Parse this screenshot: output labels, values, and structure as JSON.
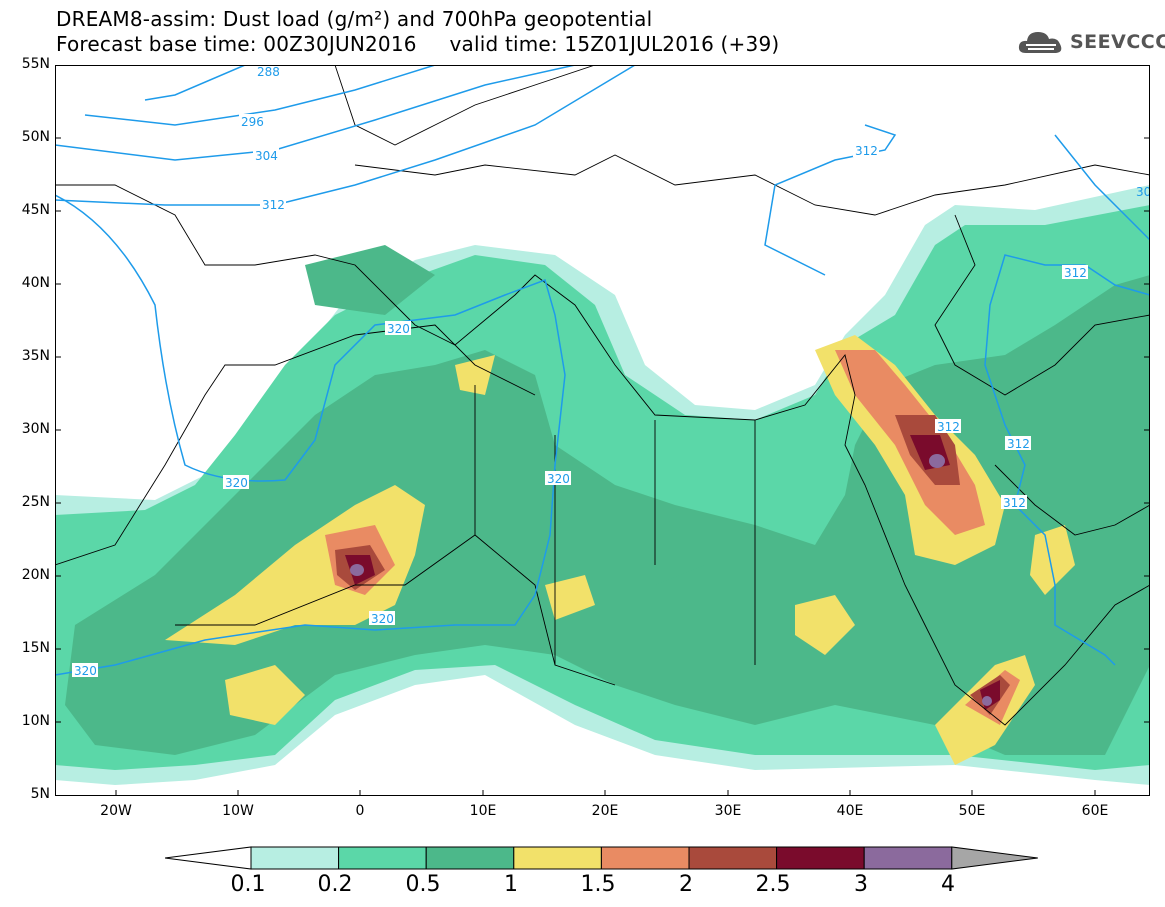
{
  "title": {
    "line1": "DREAM8-assim: Dust load (g/m²) and 700hPa geopotential",
    "line2": "Forecast base time: 00Z30JUN2016     valid time: 15Z01JUL2016 (+39)"
  },
  "logo": {
    "text": "SEEVCCC",
    "icon": "cloud-icon"
  },
  "map": {
    "lat_labels": [
      "55N",
      "50N",
      "45N",
      "40N",
      "35N",
      "30N",
      "25N",
      "20N",
      "15N",
      "10N",
      "5N"
    ],
    "lon_labels": [
      "20W",
      "10W",
      "0",
      "10E",
      "20E",
      "30E",
      "40E",
      "50E",
      "60E"
    ],
    "contour_labels": [
      "288",
      "296",
      "304",
      "312",
      "312",
      "320",
      "320",
      "320",
      "320",
      "320",
      "312",
      "312",
      "312",
      "312",
      "30"
    ],
    "contour_color": "#1e9bea"
  },
  "colorbar": {
    "labels": [
      "0.1",
      "0.2",
      "0.5",
      "1",
      "1.5",
      "2",
      "2.5",
      "3",
      "4"
    ],
    "colors": [
      "#ffffff",
      "#b7eee2",
      "#5bd7a8",
      "#4cb88a",
      "#f2e16a",
      "#e98b63",
      "#a94a3c",
      "#7a0b2c",
      "#8b6a9d",
      "#a6a6a6"
    ]
  }
}
